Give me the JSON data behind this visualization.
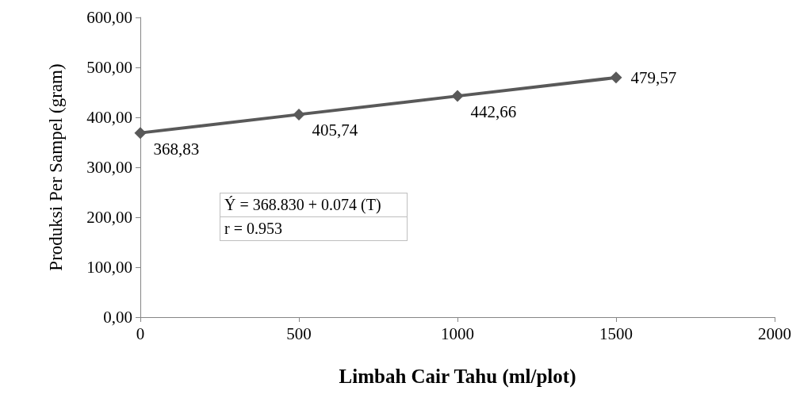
{
  "chart_data": {
    "type": "line",
    "xlabel": "Limbah Cair Tahu (ml/plot)",
    "ylabel": "Produksi Per Sampel (gram)",
    "x": [
      0,
      500,
      1000,
      1500
    ],
    "series": [
      {
        "color": "#595959",
        "values": [
          368.83,
          405.74,
          442.66,
          479.57
        ],
        "value_labels": [
          "368,83",
          "405,74",
          "442,66",
          "479,57"
        ]
      }
    ],
    "xlim": [
      0,
      2000
    ],
    "xticks": [
      0,
      500,
      1000,
      1500,
      2000
    ],
    "ylim": [
      0,
      600
    ],
    "yticks": [
      {
        "value": 0,
        "label": "0,00"
      },
      {
        "value": 100,
        "label": "100,00"
      },
      {
        "value": 200,
        "label": "200,00"
      },
      {
        "value": 300,
        "label": "300,00"
      },
      {
        "value": 400,
        "label": "400,00"
      },
      {
        "value": 500,
        "label": "500,00"
      },
      {
        "value": 600,
        "label": "600,00"
      }
    ],
    "annotations": [
      "Ý = 368.830 + 0.074 (T)",
      "r = 0.953"
    ],
    "marker": "diamond",
    "line_style": "solid",
    "grid": false
  }
}
